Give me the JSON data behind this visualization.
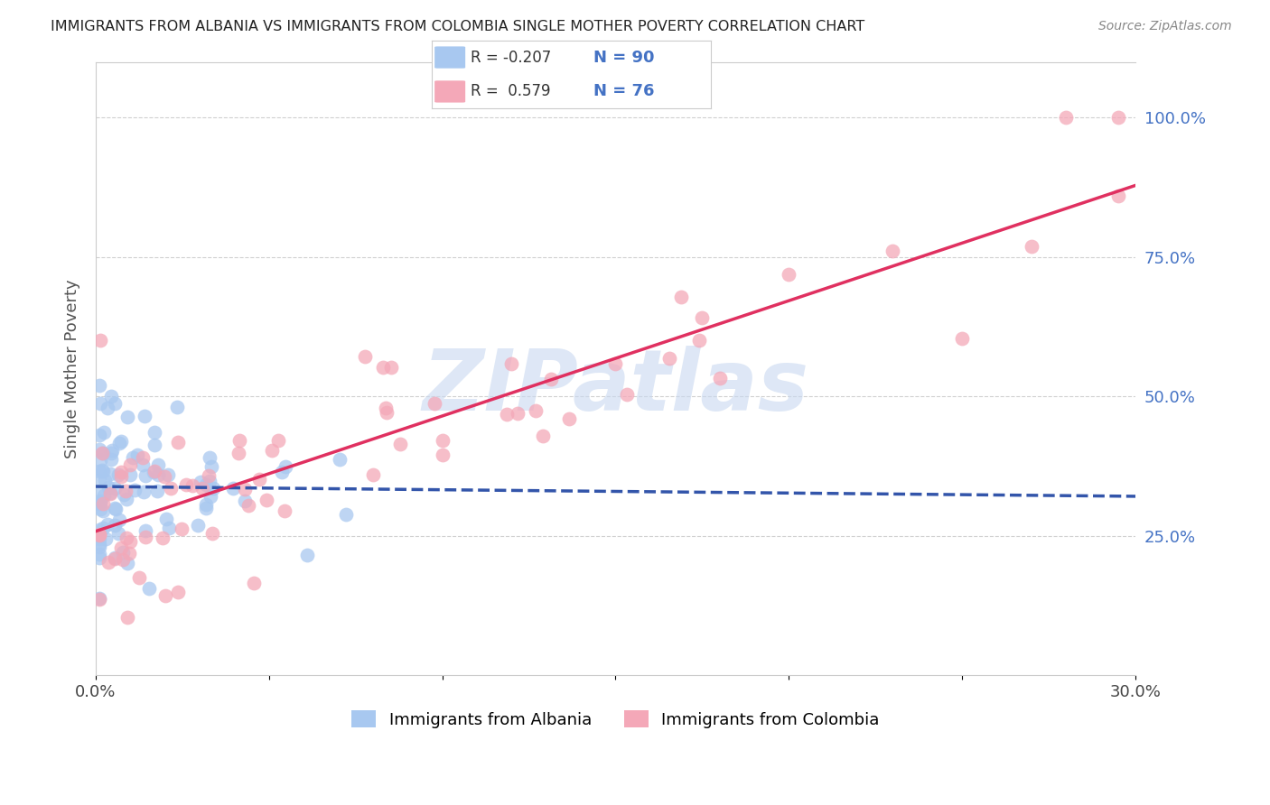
{
  "title": "IMMIGRANTS FROM ALBANIA VS IMMIGRANTS FROM COLOMBIA SINGLE MOTHER POVERTY CORRELATION CHART",
  "source": "Source: ZipAtlas.com",
  "ylabel": "Single Mother Poverty",
  "albania_R": -0.207,
  "albania_N": 90,
  "colombia_R": 0.579,
  "colombia_N": 76,
  "albania_color": "#A8C8F0",
  "colombia_color": "#F4A8B8",
  "albania_line_color": "#3355AA",
  "colombia_line_color": "#E03060",
  "legend_label_albania": "Immigrants from Albania",
  "legend_label_colombia": "Immigrants from Colombia",
  "watermark": "ZIPatlas",
  "watermark_color": "#C8D8F0",
  "right_ytick_labels": [
    "",
    "25.0%",
    "50.0%",
    "75.0%",
    "100.0%"
  ],
  "right_ytick_values": [
    0.0,
    0.25,
    0.5,
    0.75,
    1.0
  ],
  "xmin": 0.0,
  "xmax": 0.3,
  "ymin": 0.0,
  "ymax": 1.1
}
